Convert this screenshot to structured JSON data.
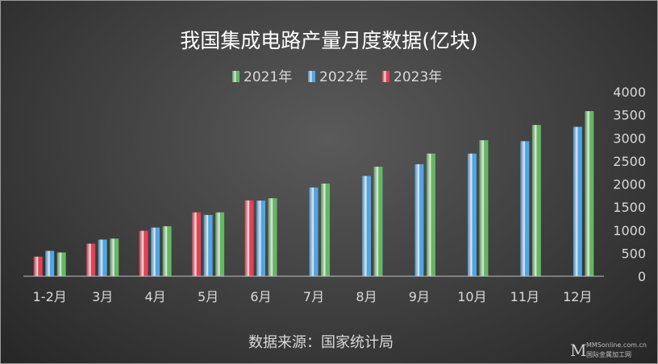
{
  "chart_data": {
    "type": "bar",
    "title": "我国集成电路产量月度数据(亿块)",
    "categories": [
      "1-2月",
      "3月",
      "4月",
      "5月",
      "6月",
      "7月",
      "8月",
      "9月",
      "10月",
      "11月",
      "12月"
    ],
    "series": [
      {
        "name": "2023年",
        "color": "#e64055",
        "values": [
          425,
          705,
          985,
          1385,
          1645,
          null,
          null,
          null,
          null,
          null,
          null
        ]
      },
      {
        "name": "2022年",
        "color": "#4fa6e6",
        "values": [
          550,
          795,
          1055,
          1330,
          1640,
          1925,
          2175,
          2430,
          2660,
          2930,
          3240
        ]
      },
      {
        "name": "2021年",
        "color": "#62b863",
        "values": [
          515,
          815,
          1085,
          1385,
          1690,
          2010,
          2375,
          2660,
          2950,
          3280,
          3580
        ]
      }
    ],
    "legend_order": [
      "2021年",
      "2022年",
      "2023年"
    ],
    "legend_position": "top",
    "yaxis": {
      "position": "right",
      "ylim": [
        0,
        4000
      ],
      "ticks": [
        0,
        500,
        1000,
        1500,
        2000,
        2500,
        3000,
        3500,
        4000
      ]
    },
    "grid": false
  },
  "footer": {
    "source": "数据来源：国家统计局"
  },
  "watermark": {
    "logo_letter": "M",
    "site": "MMSonline.com.cn",
    "name": "国际金属加工网"
  }
}
